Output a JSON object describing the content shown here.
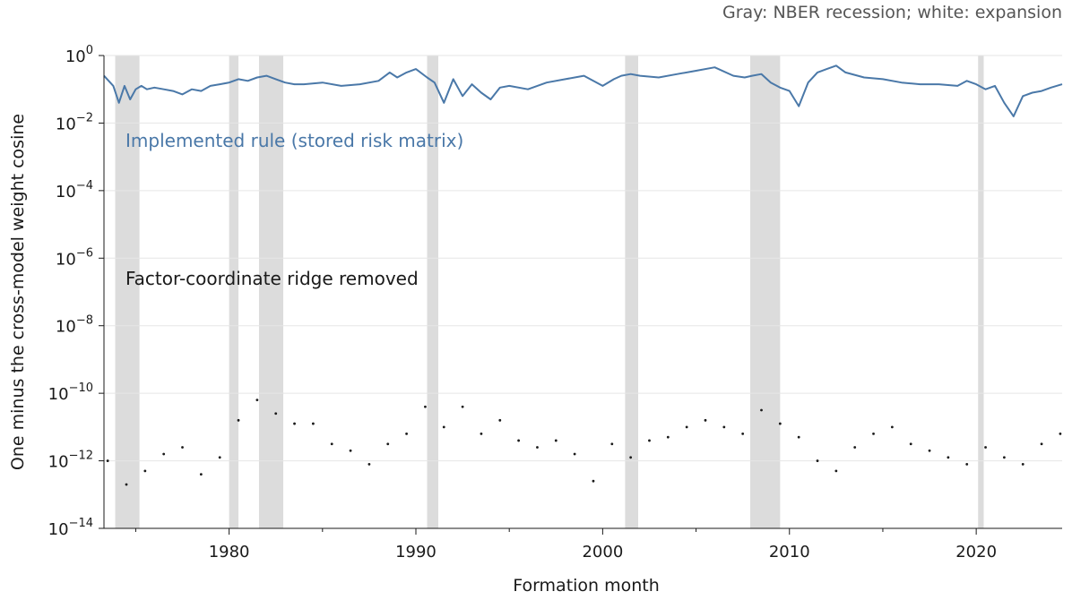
{
  "chart_data": {
    "type": "line",
    "note": "Gray: NBER recession; white: expansion",
    "xlabel": "Formation month",
    "ylabel": "One minus the cross-model weight cosine",
    "x_range": [
      1973.3,
      2024.6
    ],
    "y_scale": "log",
    "y_range_exp": [
      -14,
      0
    ],
    "x_ticks": [
      1980,
      1990,
      2000,
      2010,
      2020
    ],
    "y_ticks": [
      {
        "exp": 0,
        "base": "10",
        "sup": "0"
      },
      {
        "exp": -2,
        "base": "10",
        "sup": "−2"
      },
      {
        "exp": -4,
        "base": "10",
        "sup": "−4"
      },
      {
        "exp": -6,
        "base": "10",
        "sup": "−6"
      },
      {
        "exp": -8,
        "base": "10",
        "sup": "−8"
      },
      {
        "exp": -10,
        "base": "10",
        "sup": "−10"
      },
      {
        "exp": -12,
        "base": "10",
        "sup": "−12"
      },
      {
        "exp": -14,
        "base": "10",
        "sup": "−14"
      }
    ],
    "grid": true,
    "recessions": [
      [
        1973.9,
        1975.2
      ],
      [
        1980.0,
        1980.5
      ],
      [
        1981.6,
        1982.9
      ],
      [
        1990.6,
        1991.2
      ],
      [
        2001.2,
        2001.9
      ],
      [
        2007.9,
        2009.5
      ],
      [
        2020.1,
        2020.4
      ]
    ],
    "colors": {
      "implemented": "#4a78a8",
      "ridge_removed": "#1a1a1a",
      "recession": "#dcdcdc",
      "grid": "#e6e6e6"
    },
    "series": [
      {
        "name": "Implemented rule (stored risk matrix)",
        "style": "line",
        "x": [
          1973.3,
          1973.8,
          1974.1,
          1974.4,
          1974.7,
          1975.0,
          1975.3,
          1975.6,
          1976.0,
          1976.5,
          1977.0,
          1977.5,
          1978.0,
          1978.5,
          1979.0,
          1979.5,
          1980.0,
          1980.5,
          1981.0,
          1981.5,
          1982.0,
          1982.5,
          1983.0,
          1983.5,
          1984.0,
          1985.0,
          1986.0,
          1987.0,
          1988.0,
          1988.6,
          1989.0,
          1989.5,
          1990.0,
          1990.6,
          1991.0,
          1991.5,
          1992.0,
          1992.5,
          1993.0,
          1993.5,
          1994.0,
          1994.5,
          1995.0,
          1996.0,
          1997.0,
          1998.0,
          1999.0,
          2000.0,
          2000.6,
          2001.0,
          2001.5,
          2002.0,
          2003.0,
          2004.0,
          2005.0,
          2006.0,
          2007.0,
          2007.6,
          2008.0,
          2008.5,
          2009.0,
          2009.5,
          2010.0,
          2010.5,
          2011.0,
          2011.5,
          2012.0,
          2012.5,
          2013.0,
          2014.0,
          2015.0,
          2016.0,
          2017.0,
          2018.0,
          2019.0,
          2019.5,
          2020.0,
          2020.5,
          2021.0,
          2021.5,
          2022.0,
          2022.5,
          2023.0,
          2023.5,
          2024.0,
          2024.6
        ],
        "y_exp": [
          -0.6,
          -0.9,
          -1.4,
          -0.9,
          -1.3,
          -1.0,
          -0.9,
          -1.0,
          -0.95,
          -1.0,
          -1.05,
          -1.15,
          -1.0,
          -1.05,
          -0.9,
          -0.85,
          -0.8,
          -0.7,
          -0.75,
          -0.65,
          -0.6,
          -0.7,
          -0.8,
          -0.85,
          -0.85,
          -0.8,
          -0.9,
          -0.85,
          -0.75,
          -0.5,
          -0.65,
          -0.5,
          -0.4,
          -0.65,
          -0.8,
          -1.4,
          -0.7,
          -1.2,
          -0.85,
          -1.1,
          -1.3,
          -0.95,
          -0.9,
          -1.0,
          -0.8,
          -0.7,
          -0.6,
          -0.9,
          -0.7,
          -0.6,
          -0.55,
          -0.6,
          -0.65,
          -0.55,
          -0.45,
          -0.35,
          -0.6,
          -0.65,
          -0.6,
          -0.55,
          -0.8,
          -0.95,
          -1.05,
          -1.5,
          -0.8,
          -0.5,
          -0.4,
          -0.3,
          -0.5,
          -0.65,
          -0.7,
          -0.8,
          -0.85,
          -0.85,
          -0.9,
          -0.75,
          -0.85,
          -1.0,
          -0.9,
          -1.4,
          -1.8,
          -1.2,
          -1.1,
          -1.05,
          -0.95,
          -0.85
        ]
      },
      {
        "name": "Factor-coordinate ridge removed",
        "style": "scatter",
        "x": [
          1973.5,
          1974.5,
          1975.5,
          1976.5,
          1977.5,
          1978.5,
          1979.5,
          1980.5,
          1981.5,
          1982.5,
          1983.5,
          1984.5,
          1985.5,
          1986.5,
          1987.5,
          1988.5,
          1989.5,
          1990.5,
          1991.5,
          1992.5,
          1993.5,
          1994.5,
          1995.5,
          1996.5,
          1997.5,
          1998.5,
          1999.5,
          2000.5,
          2001.5,
          2002.5,
          2003.5,
          2004.5,
          2005.5,
          2006.5,
          2007.5,
          2008.5,
          2009.5,
          2010.5,
          2011.5,
          2012.5,
          2013.5,
          2014.5,
          2015.5,
          2016.5,
          2017.5,
          2018.5,
          2019.5,
          2020.5,
          2021.5,
          2022.5,
          2023.5,
          2024.5
        ],
        "y_exp": [
          -12.0,
          -12.7,
          -12.3,
          -11.8,
          -11.6,
          -12.4,
          -11.9,
          -10.8,
          -10.2,
          -10.6,
          -10.9,
          -10.9,
          -11.5,
          -11.7,
          -12.1,
          -11.5,
          -11.2,
          -10.4,
          -11.0,
          -10.4,
          -11.2,
          -10.8,
          -11.4,
          -11.6,
          -11.4,
          -11.8,
          -12.6,
          -11.5,
          -11.9,
          -11.4,
          -11.3,
          -11.0,
          -10.8,
          -11.0,
          -11.2,
          -10.5,
          -10.9,
          -11.3,
          -12.0,
          -12.3,
          -11.6,
          -11.2,
          -11.0,
          -11.5,
          -11.7,
          -11.9,
          -12.1,
          -11.6,
          -11.9,
          -12.1,
          -11.5,
          -11.2
        ]
      }
    ]
  }
}
